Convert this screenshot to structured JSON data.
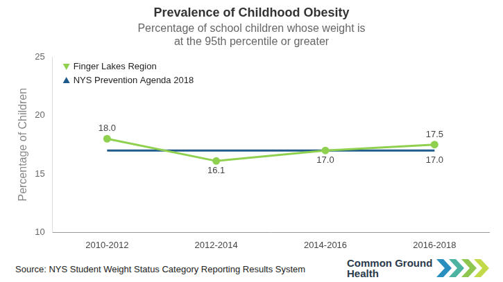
{
  "chart_data": {
    "type": "line",
    "title": "Prevalence of Childhood Obesity",
    "subtitle": [
      "Percentage of school children whose weight is",
      "at the 95th percentile or greater"
    ],
    "y_label": "Percentage of Children",
    "categories": [
      "2010-2012",
      "2012-2014",
      "2014-2016",
      "2016-2018"
    ],
    "series": [
      {
        "name": "Finger Lakes Region",
        "color": "#8fd14f",
        "marker": "circle",
        "line_style": "solid",
        "values": [
          18.0,
          16.1,
          17.0,
          17.5
        ],
        "value_labels": [
          "18.0",
          "16.1",
          "17.0",
          "17.5"
        ]
      },
      {
        "name": "NYS Prevention Agenda 2018",
        "color": "#1f5a8b",
        "marker": "none",
        "line_style": "solid",
        "values": [
          17.0,
          17.0,
          17.0,
          17.0
        ],
        "value_labels": [
          null,
          null,
          null,
          "17.0"
        ]
      }
    ],
    "ylim": [
      10,
      25
    ],
    "yticks": [
      10,
      15,
      20,
      25
    ],
    "grid": false,
    "legend": "upper left",
    "data_labels": true,
    "source": "Source: NYS Student Weight Status Category Reporting Results System",
    "logo": [
      "Common Ground",
      "Health"
    ]
  }
}
